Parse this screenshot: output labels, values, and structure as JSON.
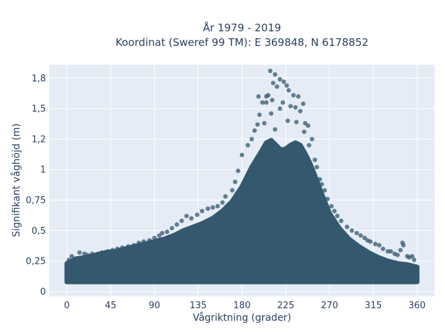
{
  "chart_data": {
    "type": "scatter",
    "title_line1": "År 1979 - 2019",
    "title_line2": "Koordinat (Sweref 99 TM): E 369848, N 6178852",
    "xlabel": "Vågriktning (grader)",
    "ylabel": "Signifikant våghöjd (m)",
    "xlim": [
      -18,
      378
    ],
    "ylim": [
      -0.04,
      1.86
    ],
    "x_ticks": [
      {
        "value": 0,
        "label": "0"
      },
      {
        "value": 45,
        "label": "45"
      },
      {
        "value": 90,
        "label": "90"
      },
      {
        "value": 135,
        "label": "135"
      },
      {
        "value": 180,
        "label": "180"
      },
      {
        "value": 225,
        "label": "225"
      },
      {
        "value": 270,
        "label": "270"
      },
      {
        "value": 315,
        "label": "315"
      },
      {
        "value": 360,
        "label": "360"
      }
    ],
    "y_ticks": [
      {
        "value": 0,
        "label": "0"
      },
      {
        "value": 0.25,
        "label": "0,25"
      },
      {
        "value": 0.5,
        "label": "0,5"
      },
      {
        "value": 0.75,
        "label": "0,75"
      },
      {
        "value": 1.0,
        "label": "1"
      },
      {
        "value": 1.25,
        "label": "1,2"
      },
      {
        "value": 1.5,
        "label": "1,5"
      },
      {
        "value": 1.75,
        "label": "1,8"
      }
    ],
    "grid": true,
    "colors": {
      "background": "#e5ecf6",
      "grid": "#ffffff",
      "marker": "#34586e",
      "text": "#2a3f5f"
    },
    "series": [
      {
        "envelope_upper": [
          [
            0,
            0.23
          ],
          [
            10,
            0.27
          ],
          [
            20,
            0.28
          ],
          [
            30,
            0.3
          ],
          [
            40,
            0.32
          ],
          [
            50,
            0.33
          ],
          [
            60,
            0.35
          ],
          [
            70,
            0.37
          ],
          [
            80,
            0.39
          ],
          [
            90,
            0.41
          ],
          [
            100,
            0.43
          ],
          [
            110,
            0.46
          ],
          [
            120,
            0.5
          ],
          [
            130,
            0.53
          ],
          [
            140,
            0.56
          ],
          [
            150,
            0.6
          ],
          [
            160,
            0.66
          ],
          [
            170,
            0.74
          ],
          [
            180,
            0.86
          ],
          [
            190,
            1.02
          ],
          [
            200,
            1.15
          ],
          [
            205,
            1.22
          ],
          [
            210,
            1.24
          ],
          [
            215,
            1.2
          ],
          [
            220,
            1.16
          ],
          [
            225,
            1.17
          ],
          [
            230,
            1.2
          ],
          [
            235,
            1.22
          ],
          [
            240,
            1.2
          ],
          [
            245,
            1.13
          ],
          [
            250,
            1.05
          ],
          [
            255,
            0.95
          ],
          [
            260,
            0.84
          ],
          [
            265,
            0.74
          ],
          [
            270,
            0.64
          ],
          [
            280,
            0.52
          ],
          [
            290,
            0.43
          ],
          [
            300,
            0.37
          ],
          [
            310,
            0.32
          ],
          [
            320,
            0.28
          ],
          [
            330,
            0.25
          ],
          [
            340,
            0.23
          ],
          [
            350,
            0.22
          ],
          [
            360,
            0.2
          ]
        ],
        "envelope_lower": 0.08,
        "points": [
          [
            209,
            1.81
          ],
          [
            214,
            1.78
          ],
          [
            219,
            1.74
          ],
          [
            223,
            1.72
          ],
          [
            212,
            1.71
          ],
          [
            216,
            1.68
          ],
          [
            226,
            1.69
          ],
          [
            205,
            1.6
          ],
          [
            207,
            1.61
          ],
          [
            228,
            1.65
          ],
          [
            233,
            1.61
          ],
          [
            238,
            1.6
          ],
          [
            211,
            1.57
          ],
          [
            222,
            1.55
          ],
          [
            243,
            1.54
          ],
          [
            197,
            1.6
          ],
          [
            201,
            1.55
          ],
          [
            205,
            1.55
          ],
          [
            230,
            1.52
          ],
          [
            235,
            1.51
          ],
          [
            240,
            1.48
          ],
          [
            219,
            1.5
          ],
          [
            198,
            1.45
          ],
          [
            210,
            1.46
          ],
          [
            245,
            1.38
          ],
          [
            248,
            1.36
          ],
          [
            196,
            1.37
          ],
          [
            203,
            1.38
          ],
          [
            236,
            1.39
          ],
          [
            227,
            1.4
          ],
          [
            193,
            1.32
          ],
          [
            214,
            1.33
          ],
          [
            244,
            1.31
          ],
          [
            190,
            1.25
          ],
          [
            252,
            1.25
          ],
          [
            249,
            1.2
          ],
          [
            186,
            1.2
          ],
          [
            180,
            1.12
          ],
          [
            255,
            1.08
          ],
          [
            257,
            1.02
          ],
          [
            176,
            0.99
          ],
          [
            260,
            0.92
          ],
          [
            173,
            0.9
          ],
          [
            265,
            0.83
          ],
          [
            170,
            0.83
          ],
          [
            262,
            0.88
          ],
          [
            268,
            0.76
          ],
          [
            160,
            0.73
          ],
          [
            163,
            0.78
          ],
          [
            272,
            0.7
          ],
          [
            155,
            0.7
          ],
          [
            150,
            0.69
          ],
          [
            145,
            0.68
          ],
          [
            275,
            0.66
          ],
          [
            139,
            0.66
          ],
          [
            278,
            0.62
          ],
          [
            282,
            0.58
          ],
          [
            134,
            0.63
          ],
          [
            128,
            0.6
          ],
          [
            123,
            0.62
          ],
          [
            118,
            0.58
          ],
          [
            288,
            0.53
          ],
          [
            113,
            0.55
          ],
          [
            293,
            0.5
          ],
          [
            108,
            0.52
          ],
          [
            103,
            0.49
          ],
          [
            298,
            0.48
          ],
          [
            302,
            0.46
          ],
          [
            98,
            0.48
          ],
          [
            95,
            0.46
          ],
          [
            306,
            0.44
          ],
          [
            309,
            0.42
          ],
          [
            90,
            0.44
          ],
          [
            85,
            0.42
          ],
          [
            312,
            0.41
          ],
          [
            79,
            0.41
          ],
          [
            74,
            0.4
          ],
          [
            317,
            0.39
          ],
          [
            321,
            0.38
          ],
          [
            69,
            0.38
          ],
          [
            63,
            0.37
          ],
          [
            57,
            0.36
          ],
          [
            325,
            0.35
          ],
          [
            52,
            0.35
          ],
          [
            47,
            0.34
          ],
          [
            330,
            0.33
          ],
          [
            333,
            0.33
          ],
          [
            42,
            0.33
          ],
          [
            36,
            0.32
          ],
          [
            32,
            0.31
          ],
          [
            26,
            0.31
          ],
          [
            21,
            0.3
          ],
          [
            18,
            0.31
          ],
          [
            13,
            0.32
          ],
          [
            337,
            0.31
          ],
          [
            345,
            0.4
          ],
          [
            346,
            0.38
          ],
          [
            343,
            0.34
          ],
          [
            340,
            0.3
          ],
          [
            350,
            0.29
          ],
          [
            352,
            0.28
          ],
          [
            355,
            0.29
          ],
          [
            357,
            0.26
          ],
          [
            5,
            0.29
          ],
          [
            2,
            0.26
          ],
          [
            8,
            0.27
          ]
        ]
      }
    ]
  }
}
